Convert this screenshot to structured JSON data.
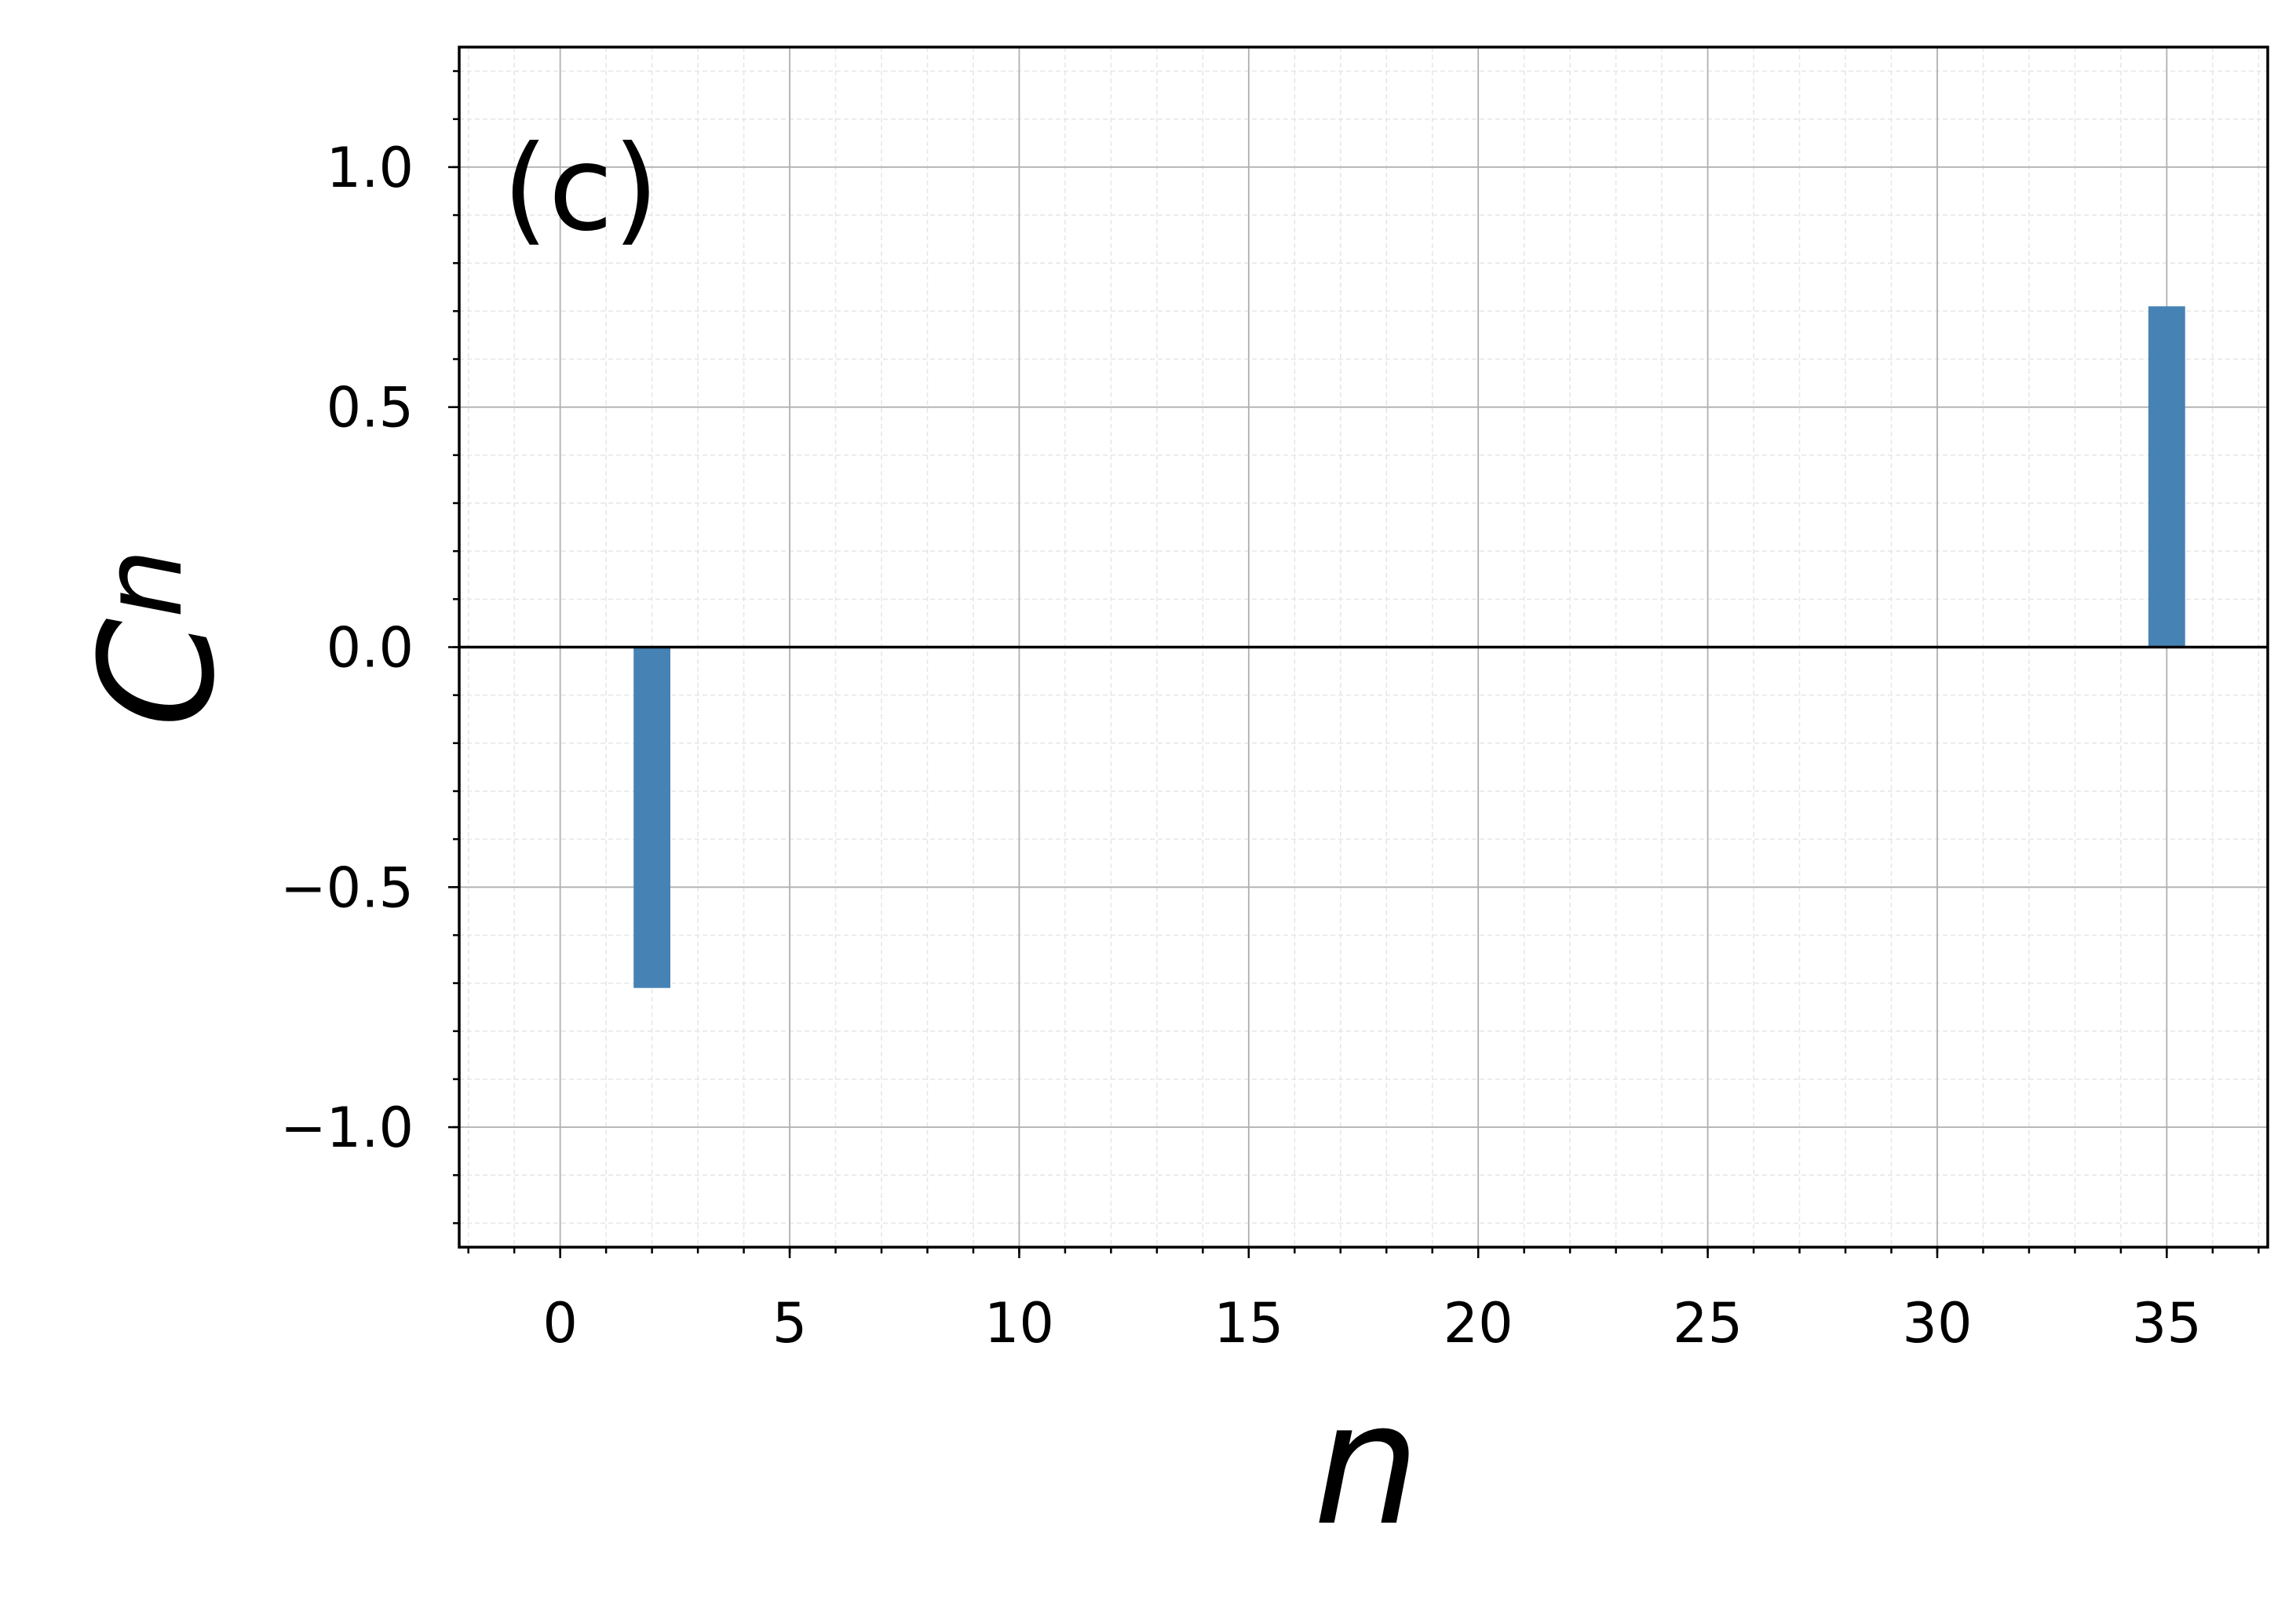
{
  "chart_data": {
    "type": "bar",
    "annotation": "(c)",
    "xlabel": "n",
    "ylabel": "C",
    "ylabel_subscript": "n",
    "x": [
      2,
      35
    ],
    "values": [
      -0.71,
      0.71
    ],
    "color": "#4682b4",
    "bar_width": 0.8,
    "xlim": [
      -2.2,
      37.2
    ],
    "ylim": [
      -1.25,
      1.25
    ],
    "xticks": [
      0,
      5,
      10,
      15,
      20,
      25,
      30,
      35
    ],
    "yticks": [
      {
        "value": -1.0,
        "label": "−1.0"
      },
      {
        "value": -0.5,
        "label": "−0.5"
      },
      {
        "value": 0.0,
        "label": "0.0"
      },
      {
        "value": 0.5,
        "label": "0.5"
      },
      {
        "value": 1.0,
        "label": "1.0"
      }
    ],
    "minor_xticks": [
      -2,
      -1,
      0,
      1,
      2,
      3,
      4,
      5,
      6,
      7,
      8,
      9,
      10,
      11,
      12,
      13,
      14,
      15,
      16,
      17,
      18,
      19,
      20,
      21,
      22,
      23,
      24,
      25,
      26,
      27,
      28,
      29,
      30,
      31,
      32,
      33,
      34,
      35,
      36,
      37
    ],
    "minor_yticks": [
      -1.2,
      -1.1,
      -1.0,
      -0.9,
      -0.8,
      -0.7,
      -0.6,
      -0.5,
      -0.4,
      -0.3,
      -0.2,
      -0.1,
      0.0,
      0.1,
      0.2,
      0.3,
      0.4,
      0.5,
      0.6,
      0.7,
      0.8,
      0.9,
      1.0,
      1.1,
      1.2
    ],
    "hline": 0,
    "grid": true
  }
}
